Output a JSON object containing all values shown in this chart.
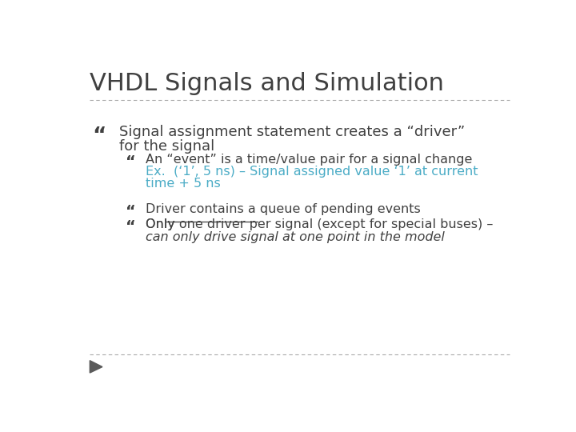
{
  "title": "VHDL Signals and Simulation",
  "title_color": "#404040",
  "title_fontsize": 22,
  "background_color": "#ffffff",
  "divider_color": "#aaaaaa",
  "dark_color": "#404040",
  "blue_color": "#4BACC6",
  "bullet1_line1": "Signal assignment statement creates a “driver”",
  "bullet1_line2": "for the signal",
  "sub1_line1": "An “event” is a time/value pair for a signal change",
  "sub1_line2": "Ex.  (‘1’, 5 ns) – Signal assigned value ‘1’ at current",
  "sub1_line3": "time + 5 ns",
  "sub2_line1": "Driver contains a queue of pending events",
  "sub3_line1_pre": "Only ",
  "sub3_line1_underline": "one driver per signal",
  "sub3_line1_post": " (except for special buses) –",
  "sub3_line2": "can only drive signal at one point in the model",
  "footer_color": "#5a5a5a"
}
